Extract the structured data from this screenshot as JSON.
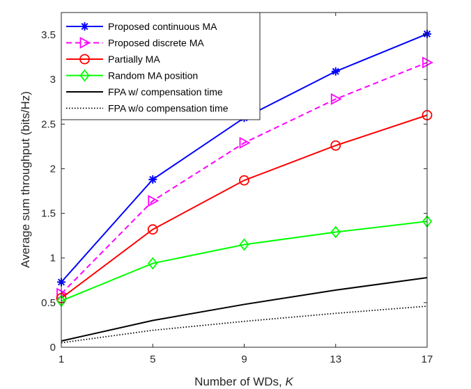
{
  "chart_data": {
    "type": "line",
    "title": "",
    "xlabel": "Number of WDs, ",
    "xlabel_var": "K",
    "ylabel": "Average sum throughput (bits/Hz)",
    "x": [
      1,
      5,
      9,
      13,
      17
    ],
    "xlim": [
      1,
      17
    ],
    "ylim": [
      0,
      3.75
    ],
    "xticks": [
      1,
      5,
      9,
      13,
      17
    ],
    "yticks": [
      0,
      0.5,
      1,
      1.5,
      2,
      2.5,
      3,
      3.5
    ],
    "ytick_labels": [
      "0",
      "0.5",
      "1",
      "1.5",
      "2",
      "2.5",
      "3",
      "3.5"
    ],
    "grid": false,
    "legend_position": "top-left",
    "series": [
      {
        "name": "Proposed continuous MA",
        "values": [
          0.73,
          1.88,
          2.57,
          3.09,
          3.51
        ],
        "color": "#0000ff",
        "dash": "solid",
        "marker": "asterisk"
      },
      {
        "name": "Proposed discrete MA",
        "values": [
          0.6,
          1.64,
          2.29,
          2.78,
          3.19
        ],
        "color": "#ff00ff",
        "dash": "dashed",
        "marker": "triangle-right"
      },
      {
        "name": "Partially MA",
        "values": [
          0.55,
          1.32,
          1.87,
          2.26,
          2.6
        ],
        "color": "#ff0000",
        "dash": "solid",
        "marker": "circle"
      },
      {
        "name": "Random MA position",
        "values": [
          0.52,
          0.94,
          1.15,
          1.29,
          1.41
        ],
        "color": "#00ff00",
        "dash": "solid",
        "marker": "diamond"
      },
      {
        "name": "FPA w/ compensation time",
        "values": [
          0.07,
          0.3,
          0.48,
          0.64,
          0.78
        ],
        "color": "#000000",
        "dash": "solid",
        "marker": "none"
      },
      {
        "name": "FPA w/o compensation time",
        "values": [
          0.05,
          0.19,
          0.29,
          0.38,
          0.46
        ],
        "color": "#000000",
        "dash": "dotted",
        "marker": "none"
      }
    ]
  }
}
